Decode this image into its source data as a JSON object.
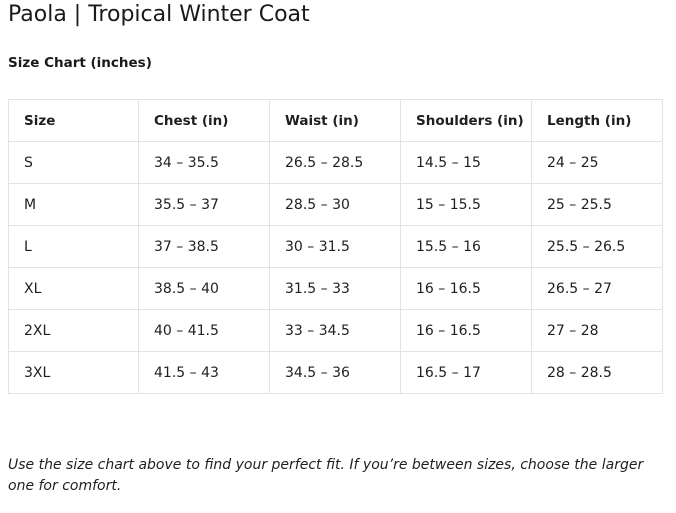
{
  "page": {
    "title": "Paola | Tropical Winter Coat",
    "subtitle": "Size Chart (inches)"
  },
  "table": {
    "headers": [
      "Size",
      "Chest (in)",
      "Waist (in)",
      "Shoulders (in)",
      "Length (in)"
    ],
    "rows": [
      [
        "S",
        "34 – 35.5",
        "26.5 – 28.5",
        "14.5 – 15",
        "24 – 25"
      ],
      [
        "M",
        "35.5 – 37",
        "28.5 – 30",
        "15 – 15.5",
        "25 – 25.5"
      ],
      [
        "L",
        "37 – 38.5",
        "30 – 31.5",
        "15.5 – 16",
        "25.5 – 26.5"
      ],
      [
        "XL",
        "38.5 – 40",
        "31.5 – 33",
        "16 – 16.5",
        "26.5 – 27"
      ],
      [
        "2XL",
        "40 – 41.5",
        "33 – 34.5",
        "16 – 16.5",
        "27 – 28"
      ],
      [
        "3XL",
        "41.5 – 43",
        "34.5 – 36",
        "16.5 – 17",
        "28 – 28.5"
      ]
    ]
  },
  "footer": {
    "note": "Use the size chart above to find your perfect fit. If you’re between sizes, choose the larger one for comfort."
  }
}
